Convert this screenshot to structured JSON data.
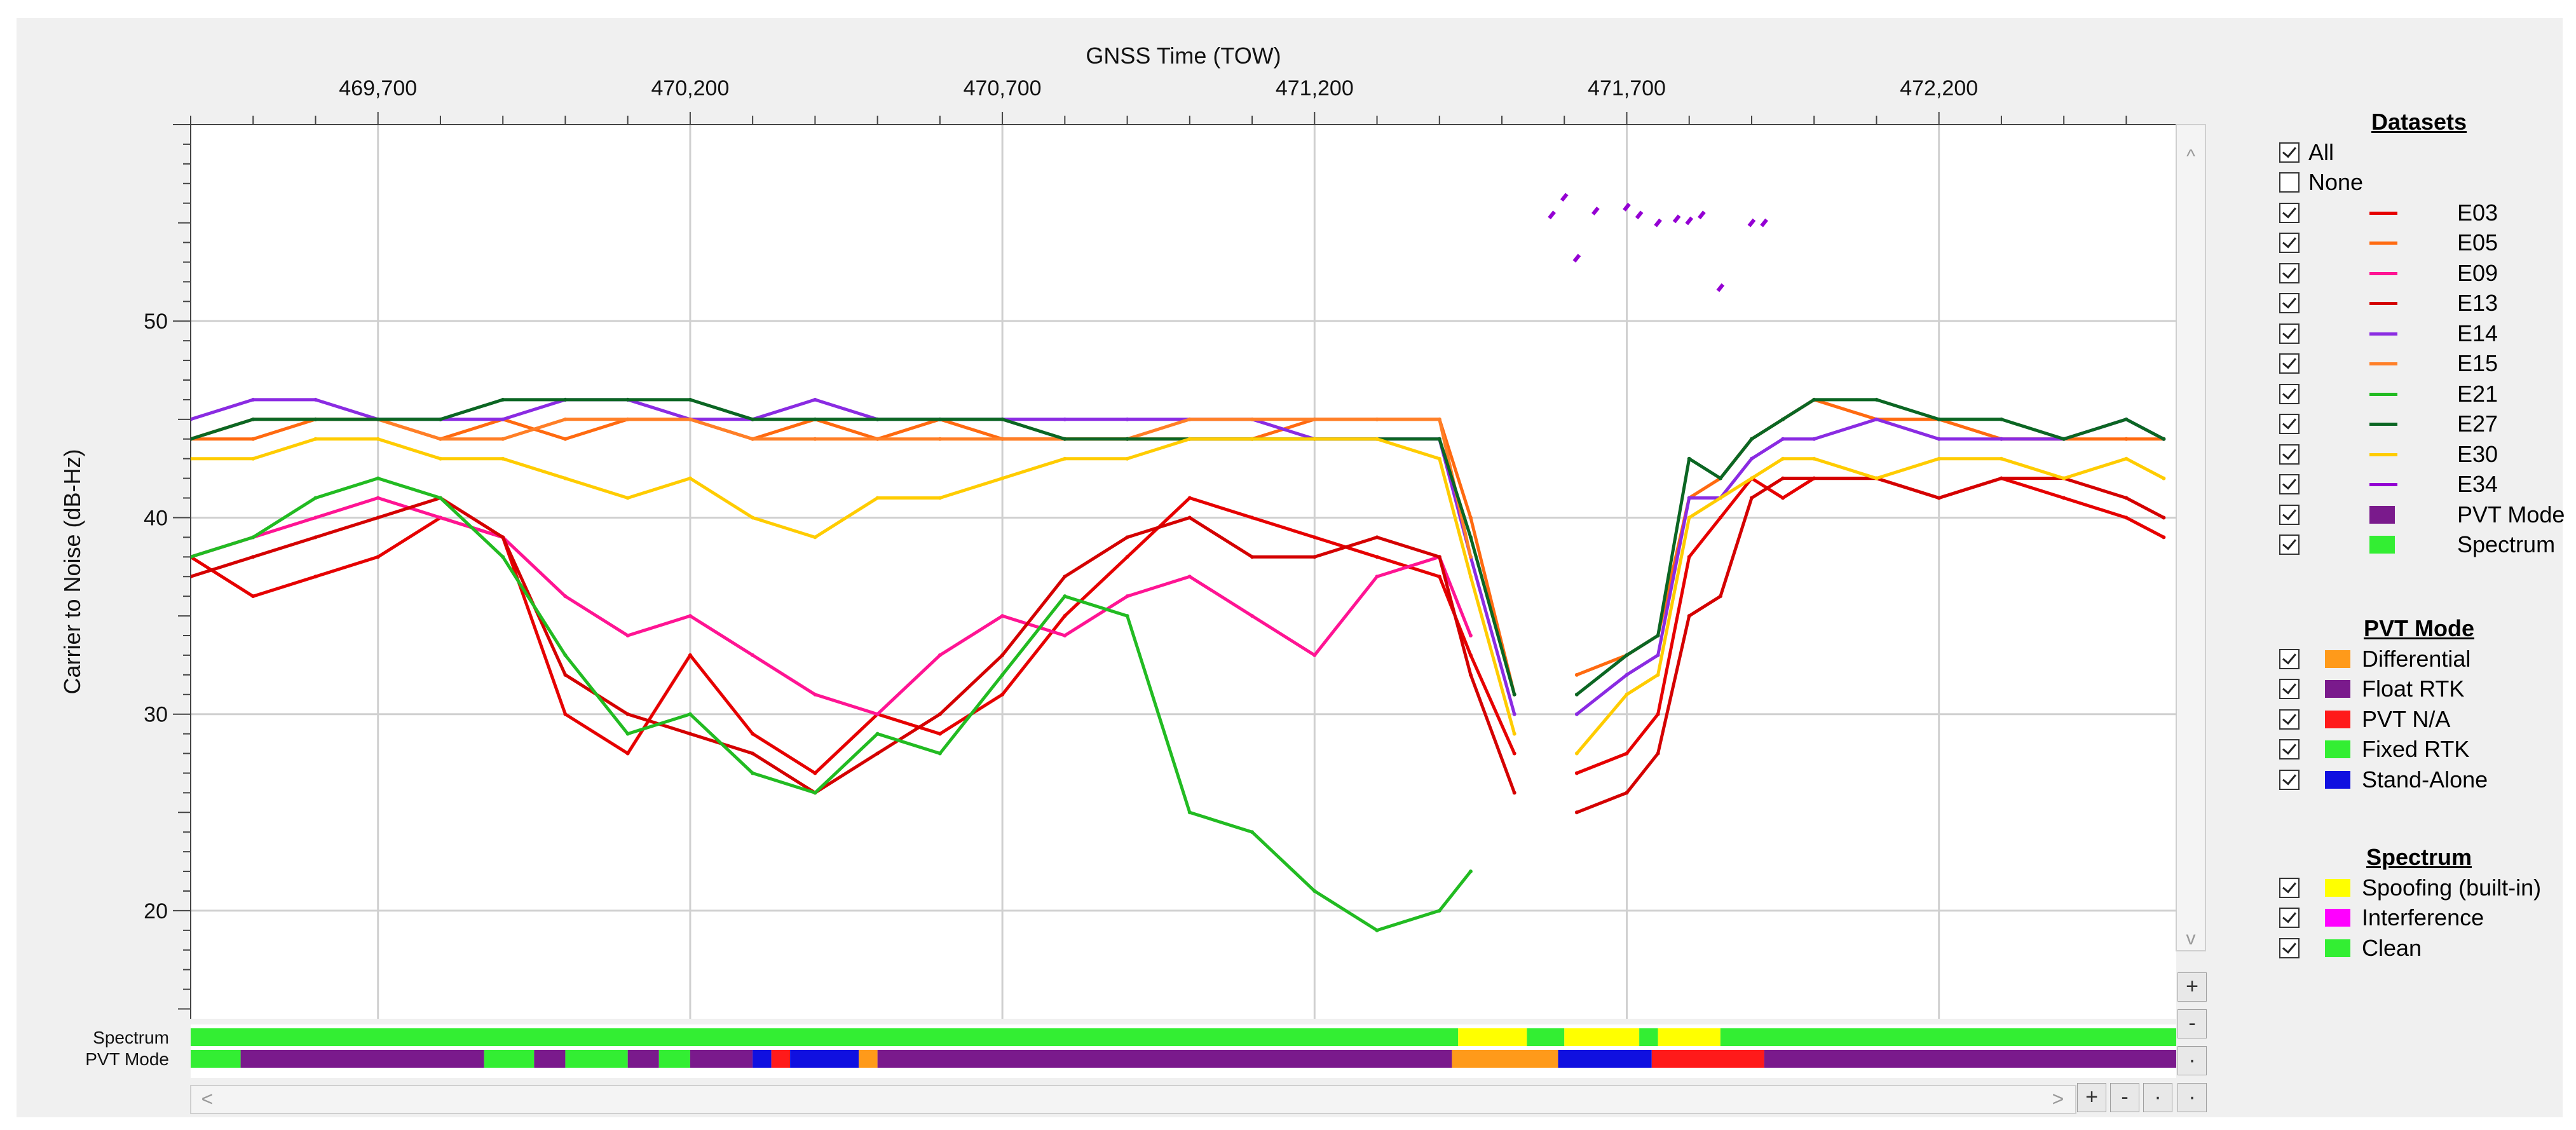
{
  "chart_data": {
    "type": "line",
    "title": "GNSS Time (TOW)",
    "xlabel": "GNSS Time (TOW)",
    "ylabel": "Carrier to Noise (dB-Hz)",
    "xlim": [
      469400,
      472580
    ],
    "ylim": [
      14.5,
      60
    ],
    "x_ticks": [
      "469,700",
      "470,200",
      "470,700",
      "471,200",
      "471,700",
      "472,200"
    ],
    "y_ticks": [
      "20",
      "30",
      "40",
      "50"
    ],
    "grid": true,
    "series": [
      {
        "name": "E03",
        "color": "#e60000",
        "x": [
          469400,
          469500,
          469600,
          469700,
          469800,
          469900,
          470000,
          470100,
          470200,
          470300,
          470400,
          470500,
          470600,
          470700,
          470800,
          470900,
          471000,
          471100,
          471200,
          471300,
          471400,
          471450,
          471520,
          471600,
          471620,
          471700,
          471750,
          471800,
          471850,
          471900,
          471950,
          472000,
          472100,
          472200,
          472300,
          472400,
          472500,
          472560
        ],
        "values": [
          38,
          36,
          37,
          38,
          40,
          39,
          30,
          28,
          33,
          29,
          27,
          30,
          29,
          31,
          35,
          38,
          41,
          40,
          39,
          38,
          37,
          33,
          28,
          null,
          27,
          28,
          30,
          38,
          40,
          42,
          41,
          42,
          42,
          41,
          42,
          41,
          40,
          39
        ]
      },
      {
        "name": "E05",
        "color": "#ff6a10",
        "x": [
          469400,
          469500,
          469600,
          469700,
          469800,
          469900,
          470000,
          470100,
          470200,
          470300,
          470400,
          470500,
          470600,
          470700,
          470800,
          470900,
          471000,
          471100,
          471200,
          471300,
          471400,
          471450,
          471520,
          471600,
          471620,
          471700,
          471750,
          471800,
          471850,
          471900,
          471950,
          472000,
          472100,
          472200,
          472300,
          472400,
          472500,
          472560
        ],
        "values": [
          44,
          44,
          45,
          45,
          44,
          45,
          44,
          45,
          45,
          44,
          45,
          44,
          45,
          44,
          44,
          44,
          44,
          44,
          45,
          45,
          45,
          40,
          31,
          null,
          32,
          33,
          34,
          41,
          42,
          44,
          45,
          46,
          45,
          45,
          44,
          44,
          44,
          44
        ]
      },
      {
        "name": "E09",
        "color": "#ff1493",
        "x": [
          469400,
          469500,
          469600,
          469700,
          469800,
          469900,
          470000,
          470100,
          470200,
          470300,
          470400,
          470500,
          470600,
          470700,
          470800,
          470900,
          471000,
          471100,
          471200,
          471300,
          471400,
          471450
        ],
        "values": [
          38,
          39,
          40,
          41,
          40,
          39,
          36,
          34,
          35,
          33,
          31,
          30,
          33,
          35,
          34,
          36,
          37,
          35,
          33,
          37,
          38,
          34
        ]
      },
      {
        "name": "E13",
        "color": "#d40000",
        "x": [
          469400,
          469500,
          469600,
          469700,
          469800,
          469900,
          470000,
          470100,
          470200,
          470300,
          470400,
          470500,
          470600,
          470700,
          470800,
          470900,
          471000,
          471100,
          471200,
          471300,
          471400,
          471450,
          471520,
          471600,
          471620,
          471700,
          471750,
          471800,
          471850,
          471900,
          471950,
          472000,
          472100,
          472200,
          472300,
          472400,
          472500,
          472560
        ],
        "values": [
          37,
          38,
          39,
          40,
          41,
          39,
          32,
          30,
          29,
          28,
          26,
          28,
          30,
          33,
          37,
          39,
          40,
          38,
          38,
          39,
          38,
          32,
          26,
          null,
          25,
          26,
          28,
          35,
          36,
          41,
          42,
          42,
          42,
          41,
          42,
          42,
          41,
          40
        ]
      },
      {
        "name": "E14",
        "color": "#8a2be2",
        "x": [
          469400,
          469500,
          469600,
          469700,
          469800,
          469900,
          470000,
          470100,
          470200,
          470300,
          470400,
          470500,
          470600,
          470700,
          470800,
          470900,
          471000,
          471100,
          471200,
          471300,
          471400,
          471450,
          471520,
          471600,
          471620,
          471700,
          471750,
          471800,
          471850,
          471900,
          471950,
          472000,
          472100,
          472200,
          472300,
          472400,
          472500,
          472560
        ],
        "values": [
          45,
          46,
          46,
          45,
          45,
          45,
          46,
          46,
          45,
          45,
          46,
          45,
          45,
          45,
          45,
          45,
          45,
          45,
          44,
          44,
          44,
          38,
          30,
          null,
          30,
          32,
          33,
          41,
          41,
          43,
          44,
          44,
          45,
          44,
          44,
          44,
          45,
          44
        ]
      },
      {
        "name": "E15",
        "color": "#ff7f27",
        "x": [
          469400,
          469500,
          469600,
          469700,
          469800,
          469900,
          470000,
          470100,
          470200,
          470300,
          470400,
          470500,
          470600,
          470700,
          470800,
          470900,
          471000,
          471100,
          471200,
          471300,
          471400,
          471450
        ],
        "values": [
          44,
          45,
          45,
          45,
          44,
          44,
          45,
          45,
          45,
          44,
          44,
          44,
          44,
          44,
          44,
          44,
          45,
          45,
          45,
          45,
          45,
          38
        ]
      },
      {
        "name": "E21",
        "color": "#22bb22",
        "x": [
          469400,
          469500,
          469600,
          469700,
          469800,
          469900,
          470000,
          470100,
          470200,
          470300,
          470400,
          470500,
          470600,
          470700,
          470800,
          470900,
          471000,
          471100,
          471200,
          471300,
          471400,
          471450
        ],
        "values": [
          38,
          39,
          41,
          42,
          41,
          38,
          33,
          29,
          30,
          27,
          26,
          29,
          28,
          32,
          36,
          35,
          25,
          24,
          21,
          19,
          20,
          22
        ]
      },
      {
        "name": "E27",
        "color": "#0b6623",
        "x": [
          469400,
          469500,
          469600,
          469700,
          469800,
          469900,
          470000,
          470100,
          470200,
          470300,
          470400,
          470500,
          470600,
          470700,
          470800,
          470900,
          471000,
          471100,
          471200,
          471300,
          471400,
          471450,
          471520,
          471600,
          471620,
          471700,
          471750,
          471800,
          471850,
          471900,
          471950,
          472000,
          472100,
          472200,
          472300,
          472400,
          472500,
          472560
        ],
        "values": [
          44,
          45,
          45,
          45,
          45,
          46,
          46,
          46,
          46,
          45,
          45,
          45,
          45,
          45,
          44,
          44,
          44,
          44,
          44,
          44,
          44,
          39,
          31,
          null,
          31,
          33,
          34,
          43,
          42,
          44,
          45,
          46,
          46,
          45,
          45,
          44,
          45,
          44
        ]
      },
      {
        "name": "E30",
        "color": "#ffcc00",
        "x": [
          469400,
          469500,
          469600,
          469700,
          469800,
          469900,
          470000,
          470100,
          470200,
          470300,
          470400,
          470500,
          470600,
          470700,
          470800,
          470900,
          471000,
          471100,
          471200,
          471300,
          471400,
          471450,
          471520,
          471600,
          471620,
          471700,
          471750,
          471800,
          471850,
          471900,
          471950,
          472000,
          472100,
          472200,
          472300,
          472400,
          472500,
          472560
        ],
        "values": [
          43,
          43,
          44,
          44,
          43,
          43,
          42,
          41,
          42,
          40,
          39,
          41,
          41,
          42,
          43,
          43,
          44,
          44,
          44,
          44,
          43,
          37,
          29,
          null,
          28,
          31,
          32,
          40,
          41,
          42,
          43,
          43,
          42,
          43,
          43,
          42,
          43,
          42
        ]
      },
      {
        "name": "E34",
        "color": "#9400d3",
        "x": [
          471580,
          471600,
          471620,
          471650,
          471700,
          471720,
          471750,
          471780,
          471800,
          471820,
          471850,
          471900,
          471920
        ],
        "values": [
          55.4,
          56.3,
          53.2,
          55.6,
          55.8,
          55.4,
          55.0,
          55.2,
          55.1,
          55.4,
          51.7,
          55.0,
          55.0
        ]
      }
    ],
    "spectrum_strip": [
      {
        "from": 469400,
        "to": 471430,
        "state": "Clean"
      },
      {
        "from": 471430,
        "to": 471540,
        "state": "Spoofing (built-in)"
      },
      {
        "from": 471540,
        "to": 471600,
        "state": "Clean"
      },
      {
        "from": 471600,
        "to": 471720,
        "state": "Spoofing (built-in)"
      },
      {
        "from": 471720,
        "to": 471750,
        "state": "Clean"
      },
      {
        "from": 471750,
        "to": 471850,
        "state": "Spoofing (built-in)"
      },
      {
        "from": 471850,
        "to": 472580,
        "state": "Clean"
      }
    ],
    "pvt_strip": [
      {
        "from": 469400,
        "to": 469480,
        "state": "Fixed RTK"
      },
      {
        "from": 469480,
        "to": 469870,
        "state": "Float RTK"
      },
      {
        "from": 469870,
        "to": 469950,
        "state": "Fixed RTK"
      },
      {
        "from": 469950,
        "to": 470000,
        "state": "Float RTK"
      },
      {
        "from": 470000,
        "to": 470100,
        "state": "Fixed RTK"
      },
      {
        "from": 470100,
        "to": 470150,
        "state": "Float RTK"
      },
      {
        "from": 470150,
        "to": 470200,
        "state": "Fixed RTK"
      },
      {
        "from": 470200,
        "to": 470300,
        "state": "Float RTK"
      },
      {
        "from": 470300,
        "to": 470330,
        "state": "Stand-Alone"
      },
      {
        "from": 470330,
        "to": 470360,
        "state": "PVT N/A"
      },
      {
        "from": 470360,
        "to": 470470,
        "state": "Stand-Alone"
      },
      {
        "from": 470470,
        "to": 470500,
        "state": "Differential"
      },
      {
        "from": 470500,
        "to": 471420,
        "state": "Float RTK"
      },
      {
        "from": 471420,
        "to": 471590,
        "state": "Differential"
      },
      {
        "from": 471590,
        "to": 471740,
        "state": "Stand-Alone"
      },
      {
        "from": 471740,
        "to": 471920,
        "state": "PVT N/A"
      },
      {
        "from": 471920,
        "to": 472580,
        "state": "Float RTK"
      }
    ]
  },
  "strip_labels": {
    "spectrum": "Spectrum",
    "pvt": "PVT Mode"
  },
  "legend": {
    "datasets_title": "Datasets",
    "datasets": [
      {
        "label": "All",
        "checked": true,
        "kind": "none"
      },
      {
        "label": "None",
        "checked": false,
        "kind": "none"
      },
      {
        "label": "E03",
        "checked": true,
        "kind": "line",
        "color": "#e60000"
      },
      {
        "label": "E05",
        "checked": true,
        "kind": "line",
        "color": "#ff6a10"
      },
      {
        "label": "E09",
        "checked": true,
        "kind": "line",
        "color": "#ff1493"
      },
      {
        "label": "E13",
        "checked": true,
        "kind": "line",
        "color": "#d40000"
      },
      {
        "label": "E14",
        "checked": true,
        "kind": "line",
        "color": "#8a2be2"
      },
      {
        "label": "E15",
        "checked": true,
        "kind": "line",
        "color": "#ff7f27"
      },
      {
        "label": "E21",
        "checked": true,
        "kind": "line",
        "color": "#22bb22"
      },
      {
        "label": "E27",
        "checked": true,
        "kind": "line",
        "color": "#0b6623"
      },
      {
        "label": "E30",
        "checked": true,
        "kind": "line",
        "color": "#ffcc00"
      },
      {
        "label": "E34",
        "checked": true,
        "kind": "line",
        "color": "#9400d3"
      },
      {
        "label": "PVT Mode",
        "checked": true,
        "kind": "box",
        "color": "#7a1a8c"
      },
      {
        "label": "Spectrum",
        "checked": true,
        "kind": "box",
        "color": "#33ee33"
      }
    ],
    "pvt_title": "PVT Mode",
    "pvt": [
      {
        "label": "Differential",
        "checked": true,
        "color": "#ff9a1a"
      },
      {
        "label": "Float RTK",
        "checked": true,
        "color": "#7a1a8c"
      },
      {
        "label": "PVT N/A",
        "checked": true,
        "color": "#ff1a1a"
      },
      {
        "label": "Fixed RTK",
        "checked": true,
        "color": "#33ee33"
      },
      {
        "label": "Stand-Alone",
        "checked": true,
        "color": "#1010e0"
      }
    ],
    "spectrum_title": "Spectrum",
    "spectrum": [
      {
        "label": "Spoofing (built-in)",
        "checked": true,
        "color": "#ffff00"
      },
      {
        "label": "Interference",
        "checked": true,
        "color": "#ff00ff"
      },
      {
        "label": "Clean",
        "checked": true,
        "color": "#33ee33"
      }
    ]
  },
  "controls": {
    "zoom_in": "+",
    "zoom_out": "-"
  }
}
